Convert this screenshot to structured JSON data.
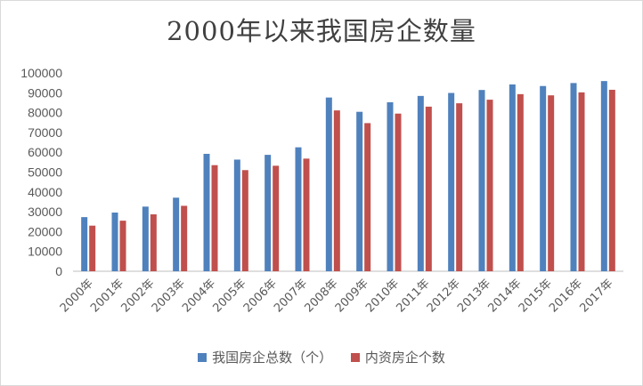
{
  "chart_data": {
    "type": "bar",
    "title": "2000年以来我国房企数量",
    "categories": [
      "2000年",
      "2001年",
      "2002年",
      "2003年",
      "2004年",
      "2005年",
      "2006年",
      "2007年",
      "2008年",
      "2009年",
      "2010年",
      "2011年",
      "2012年",
      "2013年",
      "2014年",
      "2015年",
      "2016年",
      "2017年"
    ],
    "series": [
      {
        "name": "我国房企总数（个）",
        "color": "#4f81bd",
        "values": [
          27300,
          29600,
          32600,
          37100,
          59200,
          56300,
          58700,
          62500,
          87600,
          80400,
          85200,
          88400,
          89900,
          91400,
          94200,
          93400,
          94900,
          95900
        ]
      },
      {
        "name": "内资房企个数",
        "color": "#c0504d",
        "values": [
          23000,
          25500,
          28700,
          33000,
          53500,
          51000,
          53200,
          56800,
          81100,
          74700,
          79500,
          83000,
          84700,
          86500,
          89300,
          88700,
          90200,
          91500
        ]
      }
    ],
    "y_ticks": [
      "0",
      "10000",
      "20000",
      "30000",
      "40000",
      "50000",
      "60000",
      "70000",
      "80000",
      "90000",
      "100000"
    ],
    "ylim": [
      0,
      100000
    ],
    "grid": false,
    "legend_position": "bottom"
  }
}
